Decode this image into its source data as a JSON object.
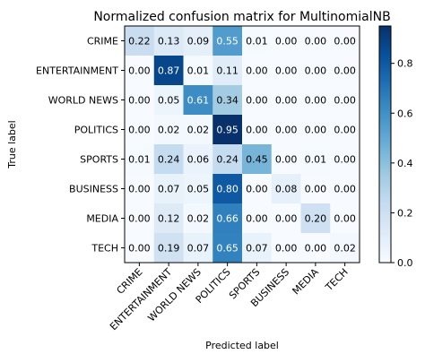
{
  "chart_data": {
    "type": "heatmap",
    "title": "Normalized confusion matrix for MultinomialNB",
    "xlabel": "Predicted label",
    "ylabel": "True label",
    "row_labels": [
      "CRIME",
      "ENTERTAINMENT",
      "WORLD NEWS",
      "POLITICS",
      "SPORTS",
      "BUSINESS",
      "MEDIA",
      "TECH"
    ],
    "col_labels": [
      "CRIME",
      "ENTERTAINMENT",
      "WORLD NEWS",
      "POLITICS",
      "SPORTS",
      "BUSINESS",
      "MEDIA",
      "TECH"
    ],
    "values": [
      [
        0.22,
        0.13,
        0.09,
        0.55,
        0.01,
        0.0,
        0.0,
        0.0
      ],
      [
        0.0,
        0.87,
        0.01,
        0.11,
        0.0,
        0.0,
        0.0,
        0.0
      ],
      [
        0.0,
        0.05,
        0.61,
        0.34,
        0.0,
        0.0,
        0.0,
        0.0
      ],
      [
        0.0,
        0.02,
        0.02,
        0.95,
        0.0,
        0.0,
        0.0,
        0.0
      ],
      [
        0.01,
        0.24,
        0.06,
        0.24,
        0.45,
        0.0,
        0.01,
        0.0
      ],
      [
        0.0,
        0.07,
        0.05,
        0.8,
        0.0,
        0.08,
        0.0,
        0.0
      ],
      [
        0.0,
        0.12,
        0.02,
        0.66,
        0.0,
        0.0,
        0.2,
        0.0
      ],
      [
        0.0,
        0.19,
        0.07,
        0.65,
        0.07,
        0.0,
        0.0,
        0.02
      ]
    ],
    "value_format": "2 decimals",
    "colormap": "Blues",
    "colorbar_ticks": [
      0.0,
      0.2,
      0.4,
      0.6,
      0.8
    ],
    "colorbar_tick_labels": [
      "0.0",
      "0.2",
      "0.4",
      "0.6",
      "0.8"
    ],
    "color_range": [
      0.0,
      0.95
    ],
    "text_color_light": "#ffffff",
    "text_color_dark": "#000000",
    "grid": false
  }
}
